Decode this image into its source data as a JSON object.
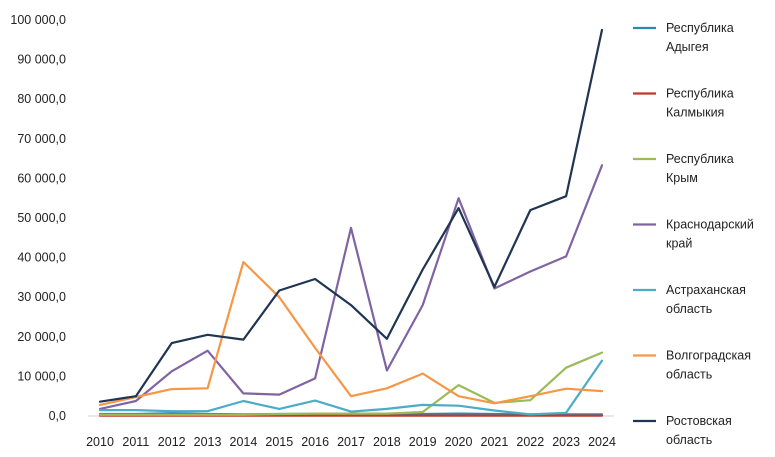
{
  "chart_data": {
    "type": "line",
    "title": "",
    "xlabel": "",
    "ylabel": "",
    "x": [
      "2010",
      "2011",
      "2012",
      "2013",
      "2014",
      "2015",
      "2016",
      "2017",
      "2018",
      "2019",
      "2020",
      "2021",
      "2022",
      "2023",
      "2024"
    ],
    "ylim": [
      0,
      100000
    ],
    "yticks": [
      0,
      10000,
      20000,
      30000,
      40000,
      50000,
      60000,
      70000,
      80000,
      90000,
      100000
    ],
    "ytick_labels": [
      "0,0",
      "10 000,0",
      "20 000,0",
      "30 000,0",
      "40 000,0",
      "50 000,0",
      "60 000,0",
      "70 000,0",
      "80 000,0",
      "90 000,0",
      "100 000,0"
    ],
    "grid": false,
    "legend_position": "right",
    "series": [
      {
        "name": "Республика Адыгея",
        "legend_lines": [
          "Республика",
          "Адыгея"
        ],
        "color": "#2e86b5",
        "values": [
          500,
          500,
          700,
          500,
          400,
          500,
          500,
          500,
          500,
          500,
          600,
          500,
          400,
          400,
          400
        ]
      },
      {
        "name": "Республика Калмыкия",
        "legend_lines": [
          "Республика",
          "Калмыкия"
        ],
        "color": "#c0392b",
        "values": [
          100,
          100,
          100,
          100,
          100,
          100,
          100,
          100,
          100,
          100,
          100,
          100,
          100,
          100,
          100
        ]
      },
      {
        "name": "Республика Крым",
        "legend_lines": [
          "Республика",
          "Крым"
        ],
        "color": "#9bbb59",
        "values": [
          300,
          300,
          300,
          300,
          300,
          500,
          600,
          600,
          600,
          1000,
          7800,
          3300,
          4000,
          12200,
          16000
        ]
      },
      {
        "name": "Краснодарский край",
        "legend_lines": [
          "Краснодарский",
          "край"
        ],
        "color": "#8064a2",
        "values": [
          1800,
          3800,
          11300,
          16500,
          5700,
          5400,
          9500,
          47500,
          11500,
          28000,
          55000,
          32200,
          36500,
          40300,
          63300
        ]
      },
      {
        "name": "Астраханская область",
        "legend_lines": [
          "Астраханская",
          "область"
        ],
        "color": "#4bacc6",
        "values": [
          1500,
          1500,
          1200,
          1200,
          3800,
          1800,
          3900,
          1100,
          1800,
          2800,
          2600,
          1400,
          400,
          800,
          14000
        ]
      },
      {
        "name": "Волгоградская область",
        "legend_lines": [
          "Волгоградская",
          "область"
        ],
        "color": "#f79646",
        "values": [
          2800,
          4800,
          6800,
          7000,
          38900,
          30000,
          17200,
          5000,
          7000,
          10700,
          5000,
          3200,
          5000,
          6900,
          6300
        ]
      },
      {
        "name": "Ростовская область",
        "legend_lines": [
          "Ростовская",
          "область"
        ],
        "color": "#1f3552",
        "values": [
          3600,
          5000,
          18400,
          20500,
          19300,
          31700,
          34600,
          28000,
          19500,
          37000,
          52500,
          32600,
          52000,
          55500,
          97500
        ]
      }
    ]
  }
}
